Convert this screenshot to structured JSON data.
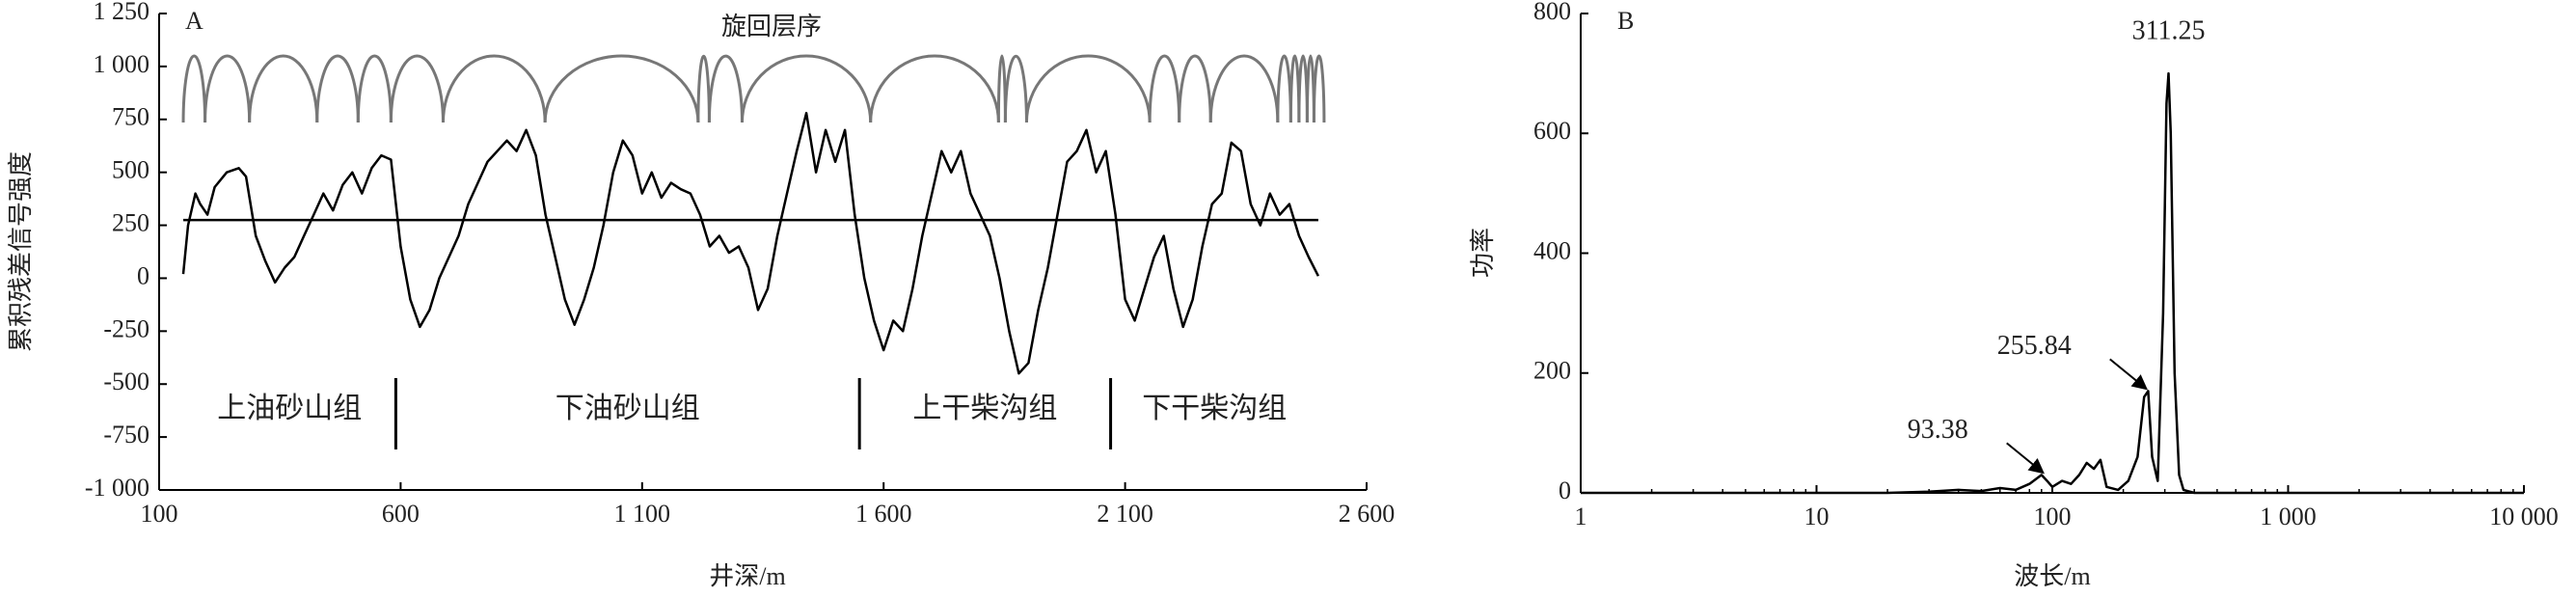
{
  "chart_data": [
    {
      "type": "line",
      "panel": "A",
      "title": "旋回层序",
      "x_label": "井深/m",
      "y_label": "累积残差信号强度",
      "xlim": [
        100,
        2600
      ],
      "xticks": [
        100,
        600,
        {
          "value": 1100,
          "label": "1 100"
        },
        {
          "value": 1600,
          "label": "1 600"
        },
        {
          "value": 2100,
          "label": "2 100"
        },
        {
          "value": 2600,
          "label": "2 600"
        }
      ],
      "ylim": [
        -1000,
        1250
      ],
      "yticks": [
        {
          "value": 1250,
          "label": "1 250"
        },
        {
          "value": 1000,
          "label": "1 000"
        },
        750,
        500,
        250,
        0,
        -250,
        -500,
        -750,
        {
          "value": -1000,
          "label": "-1 000"
        }
      ],
      "x": [
        150,
        160,
        175,
        185,
        200,
        215,
        240,
        265,
        280,
        300,
        320,
        340,
        360,
        380,
        400,
        420,
        440,
        460,
        480,
        500,
        520,
        540,
        560,
        580,
        600,
        620,
        640,
        660,
        680,
        700,
        720,
        740,
        760,
        780,
        800,
        820,
        840,
        860,
        880,
        900,
        920,
        940,
        960,
        980,
        1000,
        1020,
        1040,
        1060,
        1080,
        1100,
        1120,
        1140,
        1160,
        1180,
        1200,
        1220,
        1240,
        1260,
        1280,
        1300,
        1320,
        1340,
        1360,
        1380,
        1400,
        1420,
        1440,
        1460,
        1480,
        1500,
        1520,
        1540,
        1560,
        1580,
        1600,
        1620,
        1640,
        1660,
        1680,
        1700,
        1720,
        1740,
        1760,
        1780,
        1800,
        1820,
        1840,
        1860,
        1880,
        1900,
        1920,
        1940,
        1960,
        1980,
        2000,
        2020,
        2040,
        2060,
        2080,
        2100,
        2120,
        2140,
        2160,
        2180,
        2200,
        2220,
        2240,
        2260,
        2280,
        2300,
        2320,
        2340,
        2360,
        2380,
        2400,
        2420,
        2440,
        2460,
        2480,
        2500
      ],
      "series": [
        {
          "color": "#000000",
          "values": [
            20,
            250,
            400,
            350,
            300,
            430,
            500,
            520,
            480,
            200,
            80,
            -20,
            50,
            100,
            200,
            300,
            400,
            320,
            440,
            500,
            400,
            520,
            580,
            560,
            150,
            -100,
            -230,
            -150,
            0,
            100,
            200,
            350,
            450,
            550,
            600,
            650,
            600,
            700,
            580,
            300,
            100,
            -100,
            -220,
            -100,
            50,
            250,
            500,
            650,
            580,
            400,
            500,
            380,
            450,
            420,
            400,
            300,
            150,
            200,
            120,
            150,
            50,
            -150,
            -50,
            200,
            400,
            600,
            780,
            500,
            700,
            550,
            700,
            300,
            0,
            -200,
            -340,
            -200,
            -250,
            -50,
            200,
            400,
            600,
            500,
            600,
            400,
            300,
            200,
            0,
            -250,
            -450,
            -400,
            -150,
            50,
            300,
            550,
            600,
            700,
            500,
            600,
            300,
            -100,
            -200,
            -50,
            100,
            200,
            -50,
            -230,
            -100,
            150,
            350,
            400,
            640,
            600,
            350,
            250,
            400,
            300,
            350,
            200,
            100,
            10
          ]
        }
      ],
      "hlines": [
        275
      ],
      "cycle_boundaries": [
        150,
        195,
        287,
        427,
        512,
        580,
        688,
        899,
        1216,
        1239,
        1307,
        1573,
        1838,
        1852,
        1896,
        2151,
        2212,
        2277,
        2416,
        2443,
        2460,
        2477,
        2491,
        2512
      ],
      "formations": [
        "上油砂山组",
        "下油砂山组",
        "上干柴沟组",
        "下干柴沟组"
      ],
      "formation_boundaries": [
        590,
        1550,
        2070
      ]
    },
    {
      "type": "line",
      "panel": "B",
      "x_label": "波长/m",
      "y_label": "功率",
      "log_x": true,
      "xlim": [
        1,
        10000
      ],
      "xticks": [
        1,
        10,
        100,
        {
          "value": 1000,
          "label": "1 000"
        },
        {
          "value": 10000,
          "label": "10 000"
        }
      ],
      "ylim": [
        0,
        800
      ],
      "yticks": [
        0,
        200,
        400,
        600,
        800
      ],
      "x": [
        1,
        20,
        30,
        40,
        50,
        60,
        70,
        80,
        90,
        95,
        100,
        110,
        120,
        130,
        140,
        150,
        160,
        170,
        190,
        210,
        230,
        245,
        255,
        265,
        280,
        295,
        305,
        311,
        318,
        330,
        345,
        360,
        400,
        1000,
        10000
      ],
      "series": [
        {
          "color": "#000000",
          "values": [
            0,
            0,
            2,
            5,
            3,
            8,
            5,
            15,
            30,
            20,
            10,
            20,
            15,
            30,
            50,
            40,
            55,
            10,
            5,
            20,
            60,
            160,
            170,
            60,
            20,
            300,
            650,
            700,
            600,
            200,
            30,
            5,
            0,
            0,
            0
          ]
        }
      ],
      "annotations": [
        {
          "x": 93.38,
          "y": 30,
          "label": "93.38"
        },
        {
          "x": 255.84,
          "y": 170,
          "label": "255.84"
        },
        {
          "x": 311.25,
          "y": 700,
          "label": "311.25"
        }
      ]
    }
  ]
}
